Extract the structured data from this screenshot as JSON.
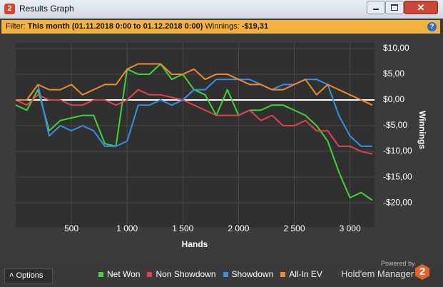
{
  "window": {
    "icon": "2",
    "title": "Results Graph"
  },
  "filter": {
    "label": "Filter:",
    "period": "This month (01.11.2018 0:00 to 01.12.2018 0:00)",
    "winnings_label": "Winnings:",
    "winnings_value": "-$19,31",
    "help": "?"
  },
  "chart_data": {
    "type": "line",
    "x_label": "Hands",
    "y_label": "Winnings",
    "grid": true,
    "zero_line": true,
    "xlim": [
      0,
      3220
    ],
    "xticks": [
      500,
      {
        "value": 1000,
        "label": "1 000"
      },
      {
        "value": 1500,
        "label": "1 500"
      },
      {
        "value": 2000,
        "label": "2 000"
      },
      {
        "value": 2500,
        "label": "2 500"
      },
      {
        "value": 3000,
        "label": "3 000"
      }
    ],
    "ylim": [
      -24.7,
      11.1
    ],
    "yticks": [
      {
        "value": 10,
        "label": "$10,00"
      },
      {
        "value": 5,
        "label": "$5,00"
      },
      {
        "value": 0,
        "label": "$0,00"
      },
      {
        "value": -5,
        "label": "-$5,00"
      },
      {
        "value": -10,
        "label": "-$10,00"
      },
      {
        "value": -15,
        "label": "-$15,00"
      },
      {
        "value": -20,
        "label": "-$20,00"
      }
    ],
    "x": [
      0,
      100,
      200,
      300,
      400,
      500,
      600,
      700,
      800,
      900,
      1000,
      1100,
      1200,
      1300,
      1400,
      1500,
      1600,
      1700,
      1800,
      1900,
      2000,
      2100,
      2200,
      2300,
      2400,
      2500,
      2600,
      2700,
      2800,
      2900,
      3000,
      3100,
      3200
    ],
    "series": [
      {
        "name": "Net Won",
        "color": "#3ed43a",
        "values": [
          -1,
          -2,
          2,
          -6,
          -4,
          -3.5,
          -3,
          -3,
          -8.5,
          -9,
          6,
          5,
          5,
          7,
          4,
          5,
          2,
          1,
          -3,
          2,
          -3,
          -2,
          -2,
          -1,
          -1,
          -2,
          -3,
          -5,
          -8,
          -14,
          -19,
          -18,
          -19.5
        ]
      },
      {
        "name": "Non Showdown",
        "color": "#e2434f",
        "values": [
          0,
          -1,
          1,
          0,
          0,
          -1,
          -1,
          0,
          0,
          -1,
          0,
          2,
          1,
          1,
          0.5,
          0,
          -1,
          -2,
          -3,
          -3,
          -3,
          -2,
          -4,
          -3,
          -5,
          -5,
          -4,
          -6,
          -6,
          -9,
          -9,
          -10,
          -10.5
        ]
      },
      {
        "name": "Showdown",
        "color": "#3a8ee6",
        "values": [
          0,
          0,
          3,
          -7,
          -5,
          -6,
          -5,
          -6,
          -9,
          -9,
          -8,
          -1,
          -1,
          0,
          -1,
          0,
          2,
          2,
          4,
          4,
          4,
          4,
          3,
          2,
          3,
          3,
          4,
          4,
          3,
          -3,
          -7,
          -9,
          -9
        ]
      },
      {
        "name": "All-In EV",
        "color": "#f08a2a",
        "values": [
          0,
          0,
          3,
          2,
          2,
          3,
          1,
          2,
          3,
          3,
          6,
          7,
          7,
          7,
          5,
          5,
          6,
          4,
          5,
          5,
          4,
          3,
          3,
          2,
          2,
          3,
          4,
          1,
          3,
          2,
          1,
          0,
          -1
        ]
      }
    ]
  },
  "footer": {
    "options": "Options",
    "powered_by": "Powered by",
    "brand": "Hold'em Manager",
    "brand_icon": "2"
  }
}
